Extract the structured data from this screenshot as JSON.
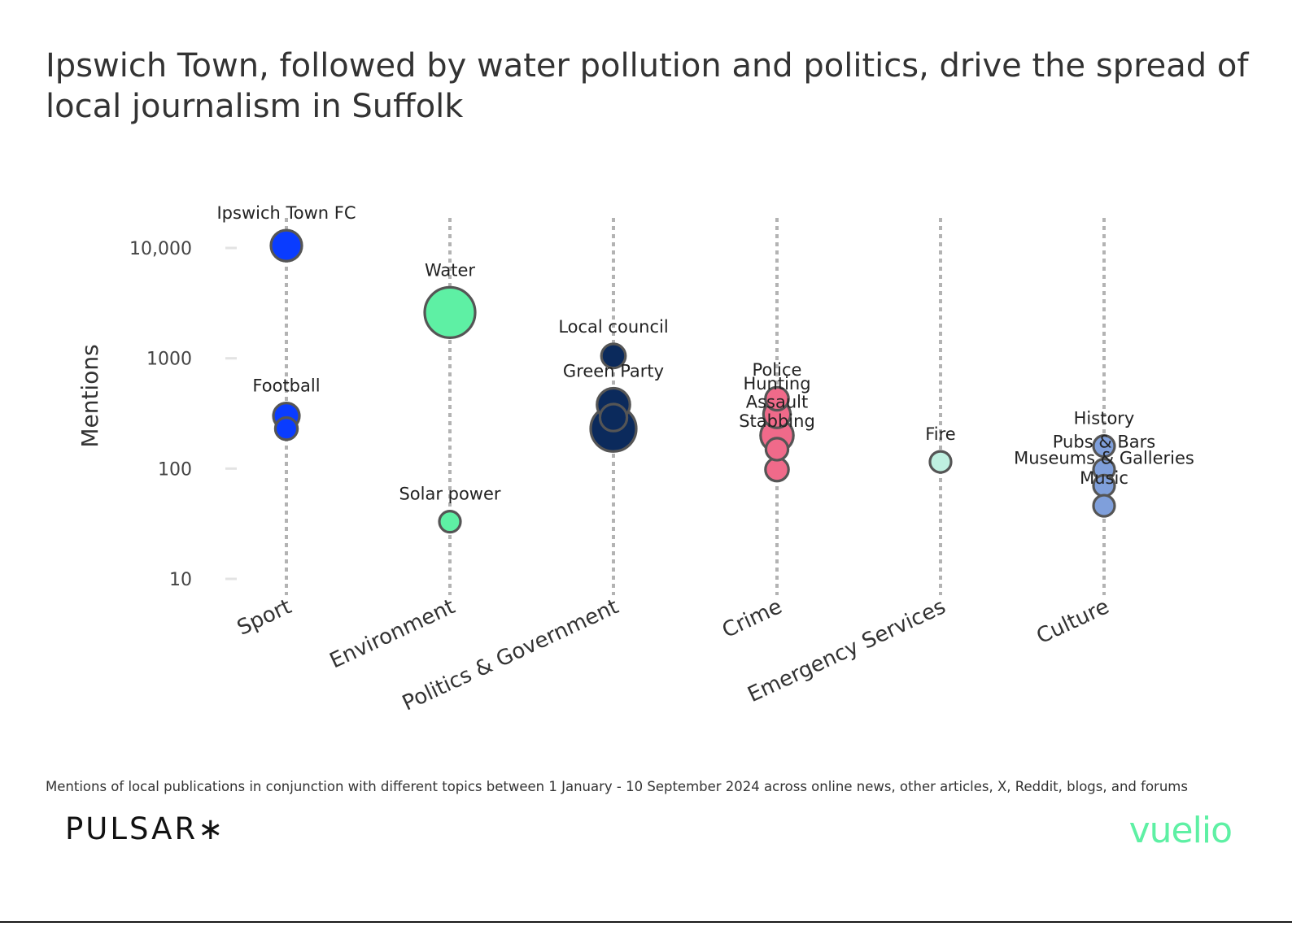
{
  "title": "Ipswich Town, followed by water pollution and politics, drive the spread of local journalism in Suffolk",
  "footnote": "Mentions of local publications in conjunction with different topics between 1 January - 10 September 2024 across online news, other articles, X, Reddit, blogs, and forums",
  "brand_left": "PULSAR∗",
  "brand_right": "vuelio",
  "colors": {
    "Sport": "#0a3cff",
    "Environment": "#5ef0a4",
    "Politics & Government": "#0b2a5c",
    "Crime": "#f06a8a",
    "Emergency Services": "#bff0e0",
    "Culture": "#7f9fdb",
    "outline": "#555555",
    "axis_line": "#b3b3b3"
  },
  "chart_data": {
    "type": "scatter",
    "title": "Ipswich Town, followed by water pollution and politics, drive the spread of local journalism in Suffolk",
    "xlabel": "",
    "ylabel": "Mentions",
    "y_scale": "log",
    "ylim": [
      10,
      10000
    ],
    "yticks": [
      10,
      100,
      1000,
      10000
    ],
    "ytick_labels": [
      "10",
      "100",
      "1000",
      "10,000"
    ],
    "categories": [
      "Sport",
      "Environment",
      "Politics & Government",
      "Crime",
      "Emergency Services",
      "Culture"
    ],
    "grid": false,
    "points": [
      {
        "category": "Sport",
        "topic": "Ipswich Town FC",
        "value": 10500,
        "size": 2,
        "label": "Ipswich Town FC"
      },
      {
        "category": "Sport",
        "topic": "Football",
        "value": 300,
        "size": 1.5,
        "label": "Football"
      },
      {
        "category": "Sport",
        "topic": "",
        "value": 230,
        "size": 1.1,
        "label": ""
      },
      {
        "category": "Environment",
        "topic": "Water",
        "value": 2600,
        "size": 4,
        "label": "Water"
      },
      {
        "category": "Environment",
        "topic": "Solar power",
        "value": 33,
        "size": 1,
        "label": "Solar power"
      },
      {
        "category": "Politics & Government",
        "topic": "Local council",
        "value": 1050,
        "size": 1.3,
        "label": "Local council"
      },
      {
        "category": "Politics & Government",
        "topic": "Green Party",
        "value": 380,
        "size": 2.2,
        "label": "Green Party"
      },
      {
        "category": "Politics & Government",
        "topic": "",
        "value": 290,
        "size": 1.6,
        "label": ""
      },
      {
        "category": "Politics & Government",
        "topic": "",
        "value": 230,
        "size": 3.5,
        "label": ""
      },
      {
        "category": "Crime",
        "topic": "Police",
        "value": 430,
        "size": 1.2,
        "label": "Police"
      },
      {
        "category": "Crime",
        "topic": "Hunting",
        "value": 310,
        "size": 1.6,
        "label": "Hunting"
      },
      {
        "category": "Crime",
        "topic": "Assault",
        "value": 200,
        "size": 2.2,
        "label": "Assault"
      },
      {
        "category": "Crime",
        "topic": "Stabbing",
        "value": 150,
        "size": 1.1,
        "label": "Stabbing"
      },
      {
        "category": "Crime",
        "topic": "",
        "value": 98,
        "size": 1.2,
        "label": ""
      },
      {
        "category": "Emergency Services",
        "topic": "Fire",
        "value": 115,
        "size": 1,
        "label": "Fire"
      },
      {
        "category": "Culture",
        "topic": "History",
        "value": 160,
        "size": 1,
        "label": "History"
      },
      {
        "category": "Culture",
        "topic": "Pubs & Bars",
        "value": 98,
        "size": 1,
        "label": "Pubs & Bars"
      },
      {
        "category": "Culture",
        "topic": "Museums & Galleries",
        "value": 70,
        "size": 1,
        "label": "Museums & Galleries"
      },
      {
        "category": "Culture",
        "topic": "Music",
        "value": 46,
        "size": 1,
        "label": "Music"
      }
    ]
  }
}
